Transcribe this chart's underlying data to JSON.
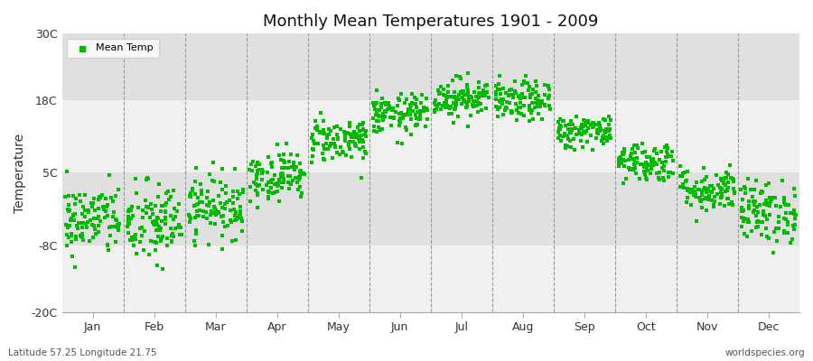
{
  "title": "Monthly Mean Temperatures 1901 - 2009",
  "ylabel": "Temperature",
  "bottom_left": "Latitude 57.25 Longitude 21.75",
  "bottom_right": "worldspecies.org",
  "legend_label": "Mean Temp",
  "dot_color": "#00bb00",
  "background_color": "#f0f0f0",
  "alt_band_color": "#e0e0e0",
  "figure_bg": "#ffffff",
  "ylim": [
    -20,
    30
  ],
  "yticks": [
    -20,
    -8,
    5,
    18,
    30
  ],
  "ytick_labels": [
    "-20C",
    "-8C",
    "5C",
    "18C",
    "30C"
  ],
  "months": [
    "Jan",
    "Feb",
    "Mar",
    "Apr",
    "May",
    "Jun",
    "Jul",
    "Aug",
    "Sep",
    "Oct",
    "Nov",
    "Dec"
  ],
  "month_means": [
    -3.5,
    -4.2,
    -1.0,
    4.5,
    11.0,
    15.5,
    18.5,
    17.8,
    12.5,
    7.0,
    2.0,
    -2.0
  ],
  "month_stds": [
    3.2,
    3.8,
    2.8,
    2.2,
    2.0,
    1.8,
    1.8,
    1.8,
    1.5,
    1.8,
    2.0,
    2.8
  ],
  "n_years": 109,
  "seed": 42
}
